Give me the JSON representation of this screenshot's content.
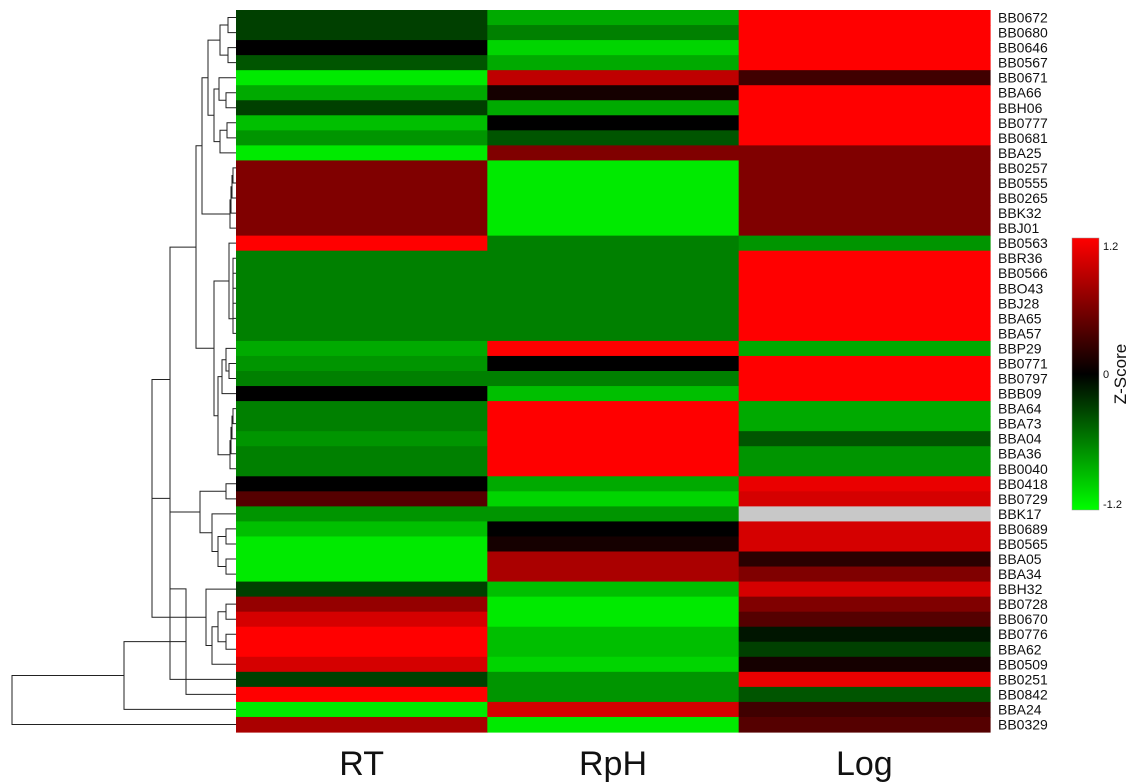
{
  "chart_data": {
    "type": "heatmap",
    "columns": [
      "RT",
      "RpH",
      "Log"
    ],
    "rows": [
      "BB0672",
      "BB0680",
      "BB0646",
      "BB0567",
      "BB0671",
      "BBA66",
      "BBH06",
      "BB0777",
      "BB0681",
      "BBA25",
      "BB0257",
      "BB0555",
      "BB0265",
      "BBK32",
      "BBJ01",
      "BB0563",
      "BBR36",
      "BB0566",
      "BBO43",
      "BBJ28",
      "BBA65",
      "BBA57",
      "BBP29",
      "BB0771",
      "BB0797",
      "BBB09",
      "BBA64",
      "BBA73",
      "BBA04",
      "BBA36",
      "BB0040",
      "BB0418",
      "BB0729",
      "BBK17",
      "BB0689",
      "BB0565",
      "BBA05",
      "BBA34",
      "BBH32",
      "BB0728",
      "BB0670",
      "BB0776",
      "BBA62",
      "BB0509",
      "BB0251",
      "BB0842",
      "BBA24",
      "BB0329"
    ],
    "values": [
      [
        -0.3,
        -0.8,
        1.2
      ],
      [
        -0.3,
        -0.6,
        1.2
      ],
      [
        0.0,
        -1.0,
        1.2
      ],
      [
        -0.4,
        -0.8,
        1.2
      ],
      [
        -1.1,
        0.9,
        0.3
      ],
      [
        -0.8,
        0.1,
        1.2
      ],
      [
        -0.3,
        -0.8,
        1.2
      ],
      [
        -0.9,
        0.0,
        1.2
      ],
      [
        -0.7,
        -0.4,
        1.2
      ],
      [
        -1.1,
        0.6,
        0.6
      ],
      [
        0.6,
        -1.1,
        0.6
      ],
      [
        0.6,
        -1.1,
        0.6
      ],
      [
        0.6,
        -1.1,
        0.6
      ],
      [
        0.6,
        -1.1,
        0.6
      ],
      [
        0.6,
        -1.1,
        0.6
      ],
      [
        1.2,
        -0.6,
        -0.7
      ],
      [
        -0.6,
        -0.6,
        1.2
      ],
      [
        -0.6,
        -0.6,
        1.2
      ],
      [
        -0.6,
        -0.6,
        1.2
      ],
      [
        -0.6,
        -0.6,
        1.2
      ],
      [
        -0.6,
        -0.6,
        1.2
      ],
      [
        -0.6,
        -0.6,
        1.2
      ],
      [
        -0.8,
        1.2,
        -0.8
      ],
      [
        -0.7,
        0.0,
        1.2
      ],
      [
        -0.6,
        -0.6,
        1.2
      ],
      [
        0.0,
        -0.9,
        1.2
      ],
      [
        -0.6,
        1.2,
        -0.8
      ],
      [
        -0.6,
        1.2,
        -0.8
      ],
      [
        -0.7,
        1.2,
        -0.4
      ],
      [
        -0.6,
        1.2,
        -0.7
      ],
      [
        -0.6,
        1.2,
        -0.7
      ],
      [
        0.0,
        -0.8,
        1.1
      ],
      [
        0.4,
        -1.0,
        1.0
      ],
      [
        -0.7,
        -0.7,
        null
      ],
      [
        -0.9,
        0.0,
        1.0
      ],
      [
        -1.1,
        0.1,
        1.0
      ],
      [
        -1.1,
        0.8,
        0.2
      ],
      [
        -1.1,
        0.8,
        0.6
      ],
      [
        -0.3,
        -0.9,
        1.0
      ],
      [
        0.7,
        -1.1,
        0.6
      ],
      [
        1.0,
        -1.1,
        0.4
      ],
      [
        1.2,
        -0.9,
        -0.1
      ],
      [
        1.2,
        -0.9,
        -0.3
      ],
      [
        1.0,
        -1.0,
        0.1
      ],
      [
        -0.3,
        -0.7,
        1.1
      ],
      [
        1.2,
        -0.7,
        -0.4
      ],
      [
        -1.1,
        1.0,
        0.3
      ],
      [
        0.8,
        -1.1,
        0.4
      ]
    ],
    "missing_color": "#c8c8c8",
    "colorscale": {
      "low": "#00ff00",
      "mid": "#000000",
      "high": "#ff0000",
      "min": -1.2,
      "max": 1.2
    },
    "colorbar": {
      "title": "Z-Score",
      "ticks": [
        "1.2",
        "0",
        "-1.2"
      ]
    }
  }
}
